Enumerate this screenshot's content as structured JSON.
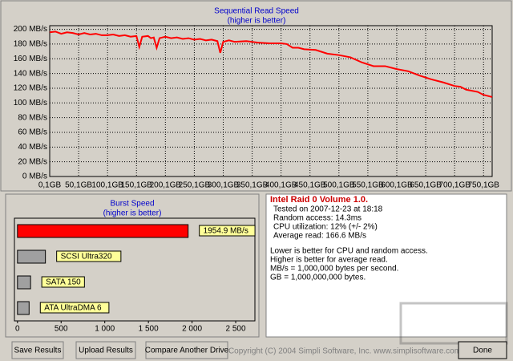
{
  "chart_data": [
    {
      "type": "line",
      "title": "Sequential Read Speed",
      "subtitle": "(higher is better)",
      "series": [
        {
          "name": null,
          "color": "#ff0000",
          "x": [
            0.1,
            10,
            20,
            30,
            40,
            50,
            60,
            70,
            80,
            90,
            100,
            110,
            120,
            130,
            140,
            150,
            155,
            160,
            170,
            175,
            180,
            185,
            190,
            200,
            210,
            220,
            230,
            240,
            250,
            260,
            270,
            280,
            290,
            295,
            300,
            310,
            320,
            340,
            360,
            380,
            400,
            410,
            420,
            430,
            440,
            460,
            480,
            500,
            520,
            540,
            560,
            580,
            600,
            620,
            640,
            660,
            680,
            700,
            710,
            720,
            740,
            750,
            765
          ],
          "values": [
            196,
            197,
            194,
            196,
            195,
            193,
            195,
            193,
            194,
            192,
            192,
            193,
            191,
            192,
            190,
            191,
            176,
            190,
            191,
            188,
            189,
            175,
            188,
            190,
            188,
            189,
            187,
            188,
            186,
            187,
            185,
            186,
            184,
            168,
            183,
            185,
            183,
            184,
            182,
            181,
            181,
            180,
            175,
            175,
            173,
            172,
            167,
            165,
            162,
            155,
            150,
            150,
            146,
            143,
            137,
            132,
            128,
            123,
            122,
            118,
            115,
            111,
            108
          ]
        }
      ],
      "xlim": [
        0.1,
        765
      ],
      "xticks": [
        {
          "value": 0.1,
          "label": "0,1GB"
        },
        {
          "value": 50.1,
          "label": "50,1GB"
        },
        {
          "value": 100.1,
          "label": "100,1GB"
        },
        {
          "value": 150.1,
          "label": "150,1GB"
        },
        {
          "value": 200.1,
          "label": "200,1GB"
        },
        {
          "value": 250.1,
          "label": "250,1GB"
        },
        {
          "value": 300.1,
          "label": "300,1GB"
        },
        {
          "value": 350.1,
          "label": "350,1GB"
        },
        {
          "value": 400.1,
          "label": "400,1GB"
        },
        {
          "value": 450.1,
          "label": "450,1GB"
        },
        {
          "value": 500.1,
          "label": "500,1GB"
        },
        {
          "value": 550.1,
          "label": "550,1GB"
        },
        {
          "value": 600.1,
          "label": "600,1GB"
        },
        {
          "value": 650.1,
          "label": "650,1GB"
        },
        {
          "value": 700.1,
          "label": "700,1GB"
        },
        {
          "value": 750.1,
          "label": "750,1GB"
        }
      ],
      "ylim": [
        0,
        205
      ],
      "yticks": [
        {
          "value": 0,
          "label": "0 MB/s"
        },
        {
          "value": 20,
          "label": "20 MB/s"
        },
        {
          "value": 40,
          "label": "40 MB/s"
        },
        {
          "value": 60,
          "label": "60 MB/s"
        },
        {
          "value": 80,
          "label": "80 MB/s"
        },
        {
          "value": 100,
          "label": "100 MB/s"
        },
        {
          "value": 120,
          "label": "120 MB/s"
        },
        {
          "value": 140,
          "label": "140 MB/s"
        },
        {
          "value": 160,
          "label": "160 MB/s"
        },
        {
          "value": 180,
          "label": "180 MB/s"
        },
        {
          "value": 200,
          "label": "200 MB/s"
        }
      ],
      "grid": true
    },
    {
      "type": "barh",
      "title": "Burst Speed",
      "subtitle": "(higher is better)",
      "categories": [
        null,
        "SCSI Ultra320",
        "SATA 150",
        "ATA UltraDMA 6"
      ],
      "values": [
        1954.9,
        320,
        150,
        133
      ],
      "value_labels": [
        "1954.9 MB/s",
        null,
        null,
        null
      ],
      "colors": [
        "#ff0000",
        "#a0a0a0",
        "#a0a0a0",
        "#a0a0a0"
      ],
      "xlim": [
        -35,
        2720
      ],
      "xticks": [
        0,
        500,
        {
          "value": 1000,
          "label": "1 000"
        },
        {
          "value": 1500,
          "label": "1 500"
        },
        {
          "value": 2000,
          "label": "2 000"
        },
        {
          "value": 2500,
          "label": "2 500"
        }
      ]
    }
  ],
  "info": {
    "heading": "Intel Raid 0 Volume 1.0.",
    "lines": [
      "Tested on 2007-12-23 at 18:18",
      "Random access: 14.3ms",
      "CPU utilization: 12% (+/- 2%)",
      "Average read: 166.6 MB/s"
    ],
    "notes": [
      "Lower is better for CPU and random access.",
      "Higher is better for average read.",
      "MB/s = 1,000,000 bytes per second.",
      "GB = 1,000,000,000 bytes."
    ]
  },
  "buttons": [
    "Save Results",
    "Upload Results",
    "Compare Another Drive",
    "Done"
  ],
  "copyright": "Copyright (C) 2004 Simpli Software, Inc. www.simplisoftware.com"
}
